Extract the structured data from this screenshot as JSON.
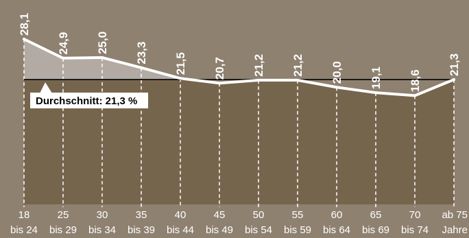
{
  "chart_data": {
    "type": "line",
    "categories": [
      [
        "18",
        "bis 24"
      ],
      [
        "25",
        "bis 29"
      ],
      [
        "30",
        "bis 34"
      ],
      [
        "35",
        "bis 39"
      ],
      [
        "40",
        "bis 44"
      ],
      [
        "45",
        "bis 49"
      ],
      [
        "50",
        "bis 54"
      ],
      [
        "55",
        "bis 59"
      ],
      [
        "60",
        "bis 64"
      ],
      [
        "65",
        "bis 69"
      ],
      [
        "70",
        "bis 74"
      ],
      [
        "ab 75",
        "Jahre"
      ]
    ],
    "values": [
      28.1,
      24.9,
      25.0,
      23.3,
      21.5,
      20.7,
      21.2,
      21.2,
      20.0,
      19.1,
      18.6,
      21.3
    ],
    "value_labels": [
      "28,1",
      "24,9",
      "25,0",
      "23,3",
      "21,5",
      "20,7",
      "21,2",
      "21,2",
      "20,0",
      "19,1",
      "18,6",
      "21,3"
    ],
    "average": 21.3,
    "average_label": "Durchschnitt: 21,3 %",
    "title": "",
    "xlabel": "",
    "ylabel": "",
    "grid": "vertical dashed",
    "colors": {
      "background": "#8f8170",
      "plot_area": "#76654d",
      "above_average_fill": "#b3aba3",
      "line": "#ffffff",
      "average_line": "#1a1a1a",
      "text": "#ffffff",
      "callout_bg": "#ffffff",
      "callout_text": "#000000"
    }
  }
}
